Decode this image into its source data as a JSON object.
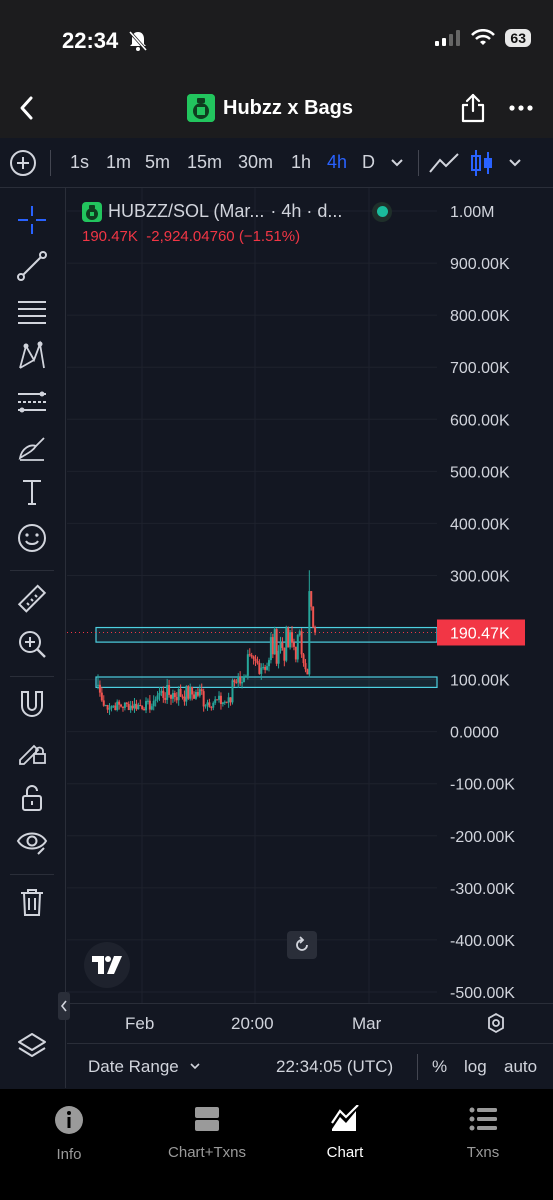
{
  "status": {
    "time": "22:34",
    "battery": "63"
  },
  "nav": {
    "title": "Hubzz x Bags"
  },
  "timeframes": [
    {
      "label": "1s",
      "active": false
    },
    {
      "label": "1m",
      "active": false
    },
    {
      "label": "5m",
      "active": false
    },
    {
      "label": "15m",
      "active": false
    },
    {
      "label": "30m",
      "active": false
    },
    {
      "label": "1h",
      "active": false
    },
    {
      "label": "4h",
      "active": true
    },
    {
      "label": "D",
      "active": false
    }
  ],
  "legend": {
    "symbol": "HUBZZ/SOL (Mar...",
    "interval": "· 4h · d...",
    "price": "190.47K",
    "change": "-2,924.04760 (−1.51%)"
  },
  "price_axis": {
    "labels": [
      "1.00M",
      "900.00K",
      "800.00K",
      "700.00K",
      "600.00K",
      "500.00K",
      "400.00K",
      "300.00K",
      "100.00K",
      "0.0000",
      "-100.00K",
      "-200.00K",
      "-300.00K",
      "-400.00K",
      "-500.00K"
    ],
    "current_price_label": "190.47K",
    "current_price_color": "#f23645"
  },
  "time_axis": {
    "labels": [
      "Feb",
      "20:00",
      "Mar"
    ]
  },
  "bottom_bar": {
    "date_range": "Date Range",
    "clock": "22:34:05 (UTC)",
    "percent": "%",
    "log": "log",
    "auto": "auto"
  },
  "tabs": [
    {
      "label": "Info",
      "icon": "info-icon",
      "active": false
    },
    {
      "label": "Chart+Txns",
      "icon": "split-view-icon",
      "active": false
    },
    {
      "label": "Chart",
      "icon": "chart-icon",
      "active": true
    },
    {
      "label": "Txns",
      "icon": "list-icon",
      "active": false
    }
  ],
  "colors": {
    "up": "#26a69a",
    "down": "#ef5350",
    "accent": "#2962ff",
    "zone": "#4dd0e1"
  },
  "chart_data": {
    "type": "candlestick",
    "title": "HUBZZ/SOL",
    "interval": "4h",
    "ylim": [
      -500000,
      1000000
    ],
    "current_price": 190470,
    "zones": [
      {
        "from": 172000,
        "to": 200000
      },
      {
        "from": 85000,
        "to": 105000
      }
    ],
    "candles_summary": [
      {
        "phase": "early Feb",
        "low": 30000,
        "high": 110000
      },
      {
        "phase": "mid",
        "low": 50000,
        "high": 100000
      },
      {
        "phase": "pump",
        "low": 100000,
        "high": 310000
      }
    ]
  }
}
